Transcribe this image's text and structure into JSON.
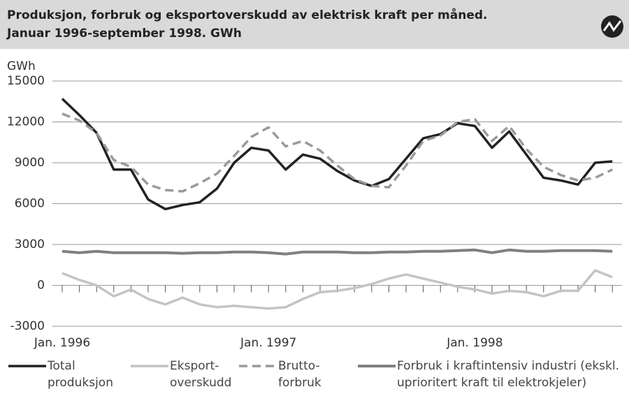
{
  "chart_data": {
    "type": "line",
    "title": "Produksjon, forbruk og eksportoverskudd av elektrisk kraft per måned.",
    "subtitle": "Januar 1996-september 1998. GWh",
    "y_label": "GWh",
    "categories": [
      "Jan. 1996",
      null,
      null,
      null,
      null,
      null,
      null,
      null,
      null,
      null,
      null,
      null,
      "Jan. 1997",
      null,
      null,
      null,
      null,
      null,
      null,
      null,
      null,
      null,
      null,
      null,
      "Jan. 1998",
      null,
      null,
      null,
      null,
      null,
      null,
      null,
      null
    ],
    "ylim": [
      -3000,
      15000
    ],
    "yticks": [
      -3000,
      0,
      3000,
      6000,
      9000,
      12000,
      15000
    ],
    "grid": true,
    "series": [
      {
        "name": "Total produksjon",
        "color": "#222222",
        "dash": false,
        "width": 3.5,
        "values": [
          13700,
          12500,
          11200,
          8500,
          8500,
          6300,
          5600,
          5900,
          6100,
          7100,
          9000,
          10100,
          9900,
          8500,
          9600,
          9300,
          8400,
          7700,
          7300,
          7800,
          9300,
          10800,
          11100,
          11900,
          11700,
          10100,
          11300,
          9600,
          7900,
          7700,
          7400,
          9000,
          9100
        ]
      },
      {
        "name": "Eksport-overskudd",
        "color": "#c4c4c4",
        "dash": false,
        "width": 3.5,
        "values": [
          900,
          400,
          0,
          -800,
          -300,
          -1000,
          -1400,
          -900,
          -1400,
          -1600,
          -1500,
          -1600,
          -1700,
          -1600,
          -1000,
          -500,
          -400,
          -200,
          100,
          500,
          800,
          500,
          200,
          -100,
          -300,
          -600,
          -400,
          -500,
          -800,
          -400,
          -400,
          1100,
          600
        ]
      },
      {
        "name": "Brutto-forbruk",
        "color": "#9a9a9a",
        "dash": true,
        "width": 3.5,
        "values": [
          12600,
          12100,
          11200,
          9200,
          8700,
          7400,
          7000,
          6900,
          7500,
          8200,
          9500,
          10900,
          11600,
          10200,
          10600,
          9900,
          8800,
          7800,
          7300,
          7200,
          8800,
          10600,
          11000,
          12000,
          12200,
          10600,
          11700,
          10000,
          8700,
          8100,
          7700,
          7900,
          8500
        ]
      },
      {
        "name": "Forbruk i kraftintensiv industri (ekskl. uprioritert kraft til elektrokjeler)",
        "color": "#808080",
        "dash": false,
        "width": 4,
        "values": [
          2500,
          2400,
          2500,
          2400,
          2400,
          2400,
          2400,
          2350,
          2400,
          2400,
          2450,
          2450,
          2400,
          2300,
          2450,
          2450,
          2450,
          2400,
          2400,
          2450,
          2450,
          2500,
          2500,
          2550,
          2600,
          2400,
          2600,
          2500,
          2500,
          2550,
          2550,
          2550,
          2500
        ]
      }
    ]
  }
}
